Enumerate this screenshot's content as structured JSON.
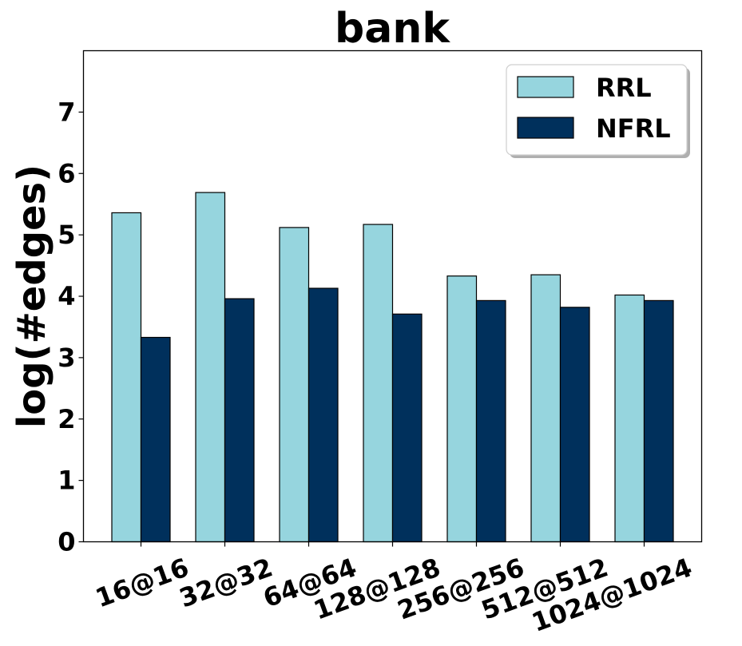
{
  "chart_data": {
    "type": "bar",
    "title": "bank",
    "xlabel": "",
    "ylabel": "log(#edges)",
    "categories": [
      "16@16",
      "32@32",
      "64@64",
      "128@128",
      "256@256",
      "512@512",
      "1024@1024"
    ],
    "series": [
      {
        "name": "RRL",
        "color": "#96d5de",
        "values": [
          5.36,
          5.69,
          5.12,
          5.17,
          4.33,
          4.35,
          4.02
        ]
      },
      {
        "name": "NFRL",
        "color": "#00305c",
        "values": [
          3.33,
          3.96,
          4.13,
          3.71,
          3.93,
          3.82,
          3.93
        ]
      }
    ],
    "ylim": [
      0,
      8
    ],
    "yticks": [
      "0",
      "1",
      "2",
      "3",
      "4",
      "5",
      "6",
      "7"
    ],
    "grid": false,
    "legend_position": "top-right"
  }
}
